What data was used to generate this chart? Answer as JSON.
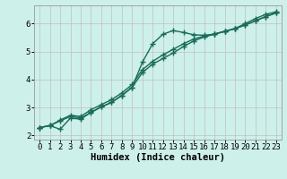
{
  "xlabel": "Humidex (Indice chaleur)",
  "bg_color": "#cdf0ea",
  "grid_color": "#c0c0c0",
  "line_color": "#1a6b5a",
  "x_values": [
    0,
    1,
    2,
    3,
    4,
    5,
    6,
    7,
    8,
    9,
    10,
    11,
    12,
    13,
    14,
    15,
    16,
    17,
    18,
    19,
    20,
    21,
    22,
    23
  ],
  "line1_y": [
    2.28,
    2.35,
    2.22,
    2.62,
    2.58,
    2.83,
    3.02,
    3.18,
    3.43,
    3.72,
    4.62,
    5.28,
    5.62,
    5.75,
    5.68,
    5.6,
    5.58,
    5.62,
    5.72,
    5.82,
    6.0,
    6.18,
    6.33,
    6.42
  ],
  "line2_y": [
    2.28,
    2.35,
    2.52,
    2.68,
    2.62,
    2.82,
    3.02,
    3.18,
    3.43,
    3.72,
    4.25,
    4.55,
    4.75,
    4.95,
    5.18,
    5.38,
    5.52,
    5.62,
    5.72,
    5.82,
    5.95,
    6.1,
    6.25,
    6.38
  ],
  "line3_y": [
    2.28,
    2.35,
    2.55,
    2.72,
    2.68,
    2.92,
    3.1,
    3.28,
    3.52,
    3.82,
    4.35,
    4.65,
    4.88,
    5.08,
    5.28,
    5.45,
    5.55,
    5.63,
    5.72,
    5.82,
    5.95,
    6.1,
    6.25,
    6.38
  ],
  "ylim": [
    1.85,
    6.65
  ],
  "xlim": [
    -0.5,
    23.5
  ],
  "yticks": [
    2,
    3,
    4,
    5,
    6
  ],
  "xticks": [
    0,
    1,
    2,
    3,
    4,
    5,
    6,
    7,
    8,
    9,
    10,
    11,
    12,
    13,
    14,
    15,
    16,
    17,
    18,
    19,
    20,
    21,
    22,
    23
  ],
  "marker": "+",
  "markersize": 4,
  "linewidth": 1.0,
  "xlabel_fontsize": 7.5,
  "tick_fontsize": 6.5
}
